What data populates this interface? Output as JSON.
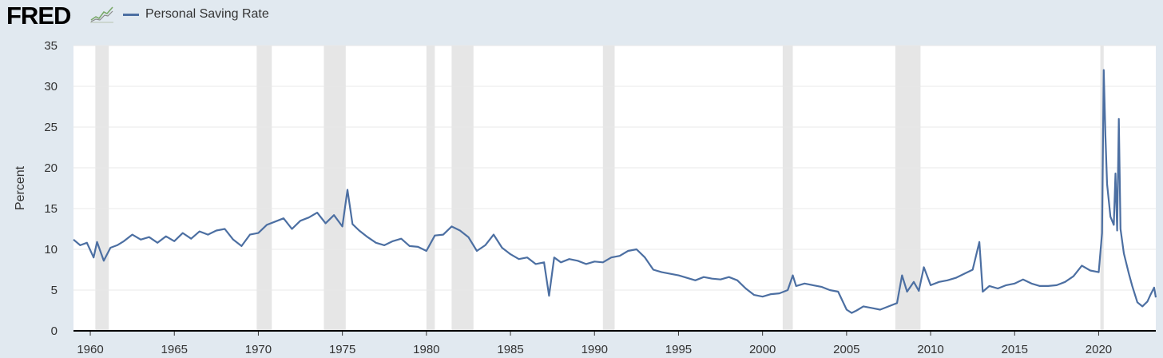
{
  "header": {
    "logo_text": "FRED",
    "logo_mark_icon": "line-chart-icon"
  },
  "chart_data": {
    "type": "line",
    "title": "",
    "legend": {
      "placement": "top-left",
      "entries": [
        "Personal Saving Rate"
      ]
    },
    "xlabel": "",
    "ylabel": "Percent",
    "xlim": [
      1959.0,
      2023.4
    ],
    "ylim": [
      0,
      35
    ],
    "yticks": [
      0,
      5,
      10,
      15,
      20,
      25,
      30,
      35
    ],
    "xticks": [
      1960,
      1965,
      1970,
      1975,
      1980,
      1985,
      1990,
      1995,
      2000,
      2005,
      2010,
      2015,
      2020
    ],
    "grid": true,
    "colors": {
      "line": "#4c6fa2",
      "recession_band": "#e6e6e6",
      "plot_background": "#ffffff",
      "outer_background": "#e1e9f0",
      "gridline": "#e8e8e8"
    },
    "recessions": [
      [
        1960.3,
        1961.1
      ],
      [
        1969.9,
        1970.8
      ],
      [
        1973.9,
        1975.2
      ],
      [
        1980.0,
        1980.5
      ],
      [
        1981.5,
        1982.8
      ],
      [
        1990.5,
        1991.2
      ],
      [
        2001.2,
        2001.8
      ],
      [
        2007.9,
        2009.4
      ],
      [
        2020.1,
        2020.3
      ]
    ],
    "series": [
      {
        "name": "Personal Saving Rate",
        "x": [
          1959.0,
          1959.4,
          1959.8,
          1960.2,
          1960.4,
          1960.8,
          1961.2,
          1961.6,
          1962.0,
          1962.5,
          1963.0,
          1963.5,
          1964.0,
          1964.5,
          1965.0,
          1965.5,
          1966.0,
          1966.5,
          1967.0,
          1967.5,
          1968.0,
          1968.5,
          1969.0,
          1969.5,
          1970.0,
          1970.5,
          1971.0,
          1971.5,
          1972.0,
          1972.5,
          1973.0,
          1973.5,
          1974.0,
          1974.5,
          1975.0,
          1975.3,
          1975.6,
          1976.0,
          1976.5,
          1977.0,
          1977.5,
          1978.0,
          1978.5,
          1979.0,
          1979.5,
          1980.0,
          1980.5,
          1981.0,
          1981.5,
          1982.0,
          1982.5,
          1983.0,
          1983.5,
          1984.0,
          1984.5,
          1985.0,
          1985.5,
          1986.0,
          1986.5,
          1987.0,
          1987.3,
          1987.6,
          1988.0,
          1988.5,
          1989.0,
          1989.5,
          1990.0,
          1990.5,
          1991.0,
          1991.5,
          1992.0,
          1992.5,
          1993.0,
          1993.5,
          1994.0,
          1994.5,
          1995.0,
          1995.5,
          1996.0,
          1996.5,
          1997.0,
          1997.5,
          1998.0,
          1998.5,
          1999.0,
          1999.5,
          2000.0,
          2000.5,
          2001.0,
          2001.5,
          2001.8,
          2002.0,
          2002.5,
          2003.0,
          2003.5,
          2004.0,
          2004.5,
          2005.0,
          2005.3,
          2005.6,
          2006.0,
          2006.5,
          2007.0,
          2007.5,
          2008.0,
          2008.3,
          2008.6,
          2009.0,
          2009.3,
          2009.6,
          2010.0,
          2010.5,
          2011.0,
          2011.5,
          2012.0,
          2012.5,
          2012.9,
          2013.1,
          2013.5,
          2014.0,
          2014.5,
          2015.0,
          2015.5,
          2016.0,
          2016.5,
          2017.0,
          2017.5,
          2018.0,
          2018.5,
          2019.0,
          2019.5,
          2020.0,
          2020.2,
          2020.3,
          2020.4,
          2020.5,
          2020.7,
          2020.9,
          2021.0,
          2021.1,
          2021.2,
          2021.3,
          2021.5,
          2021.8,
          2022.0,
          2022.3,
          2022.6,
          2022.9,
          2023.1,
          2023.3,
          2023.4
        ],
        "values": [
          11.2,
          10.5,
          10.8,
          9.0,
          10.9,
          8.6,
          10.2,
          10.5,
          11.0,
          11.8,
          11.2,
          11.5,
          10.8,
          11.6,
          11.0,
          12.0,
          11.3,
          12.2,
          11.8,
          12.3,
          12.5,
          11.2,
          10.4,
          11.8,
          12.0,
          13.0,
          13.4,
          13.8,
          12.5,
          13.5,
          13.9,
          14.5,
          13.2,
          14.2,
          12.8,
          17.3,
          13.1,
          12.3,
          11.5,
          10.8,
          10.5,
          11.0,
          11.3,
          10.4,
          10.3,
          9.8,
          11.7,
          11.8,
          12.8,
          12.3,
          11.5,
          9.8,
          10.5,
          11.8,
          10.2,
          9.4,
          8.8,
          9.0,
          8.2,
          8.4,
          4.3,
          9.0,
          8.4,
          8.8,
          8.6,
          8.2,
          8.5,
          8.4,
          9.0,
          9.2,
          9.8,
          10.0,
          9.0,
          7.5,
          7.2,
          7.0,
          6.8,
          6.5,
          6.2,
          6.6,
          6.4,
          6.3,
          6.6,
          6.2,
          5.2,
          4.4,
          4.2,
          4.5,
          4.6,
          5.0,
          6.8,
          5.5,
          5.8,
          5.6,
          5.4,
          5.0,
          4.8,
          2.6,
          2.2,
          2.5,
          3.0,
          2.8,
          2.6,
          3.0,
          3.4,
          6.8,
          4.8,
          6.0,
          4.9,
          7.8,
          5.6,
          6.0,
          6.2,
          6.5,
          7.0,
          7.5,
          10.9,
          4.8,
          5.5,
          5.2,
          5.6,
          5.8,
          6.3,
          5.8,
          5.5,
          5.5,
          5.6,
          6.0,
          6.7,
          8.0,
          7.4,
          7.2,
          12.0,
          32.0,
          24.0,
          18.0,
          14.0,
          13.0,
          19.3,
          12.3,
          26.0,
          12.5,
          9.5,
          7.0,
          5.5,
          3.5,
          3.0,
          3.6,
          4.5,
          5.3,
          4.1
        ]
      }
    ]
  }
}
